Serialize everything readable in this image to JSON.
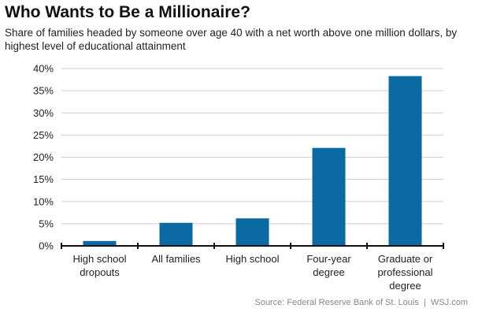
{
  "chart_data": {
    "type": "bar",
    "title": "Who Wants to Be a Millionaire?",
    "subtitle": "Share of families headed by someone over age 40 with a net worth above one million dollars, by highest level of educational attainment",
    "categories": [
      [
        "High school",
        "dropouts"
      ],
      [
        "All families"
      ],
      [
        "High school"
      ],
      [
        "Four-year",
        "degree"
      ],
      [
        "Graduate or",
        "professional",
        "degree"
      ]
    ],
    "values": [
      1.1,
      5.2,
      6.2,
      22.1,
      38.3
    ],
    "ylim": [
      0,
      40
    ],
    "yticks": [
      "0%",
      "5%",
      "10%",
      "15%",
      "20%",
      "25%",
      "30%",
      "35%",
      "40%"
    ],
    "xlabel": "",
    "ylabel": "",
    "grid": true,
    "bar_color": "#0a6aa1",
    "source": "Source: Federal Reserve Bank of St. Louis  |  WSJ.com"
  }
}
